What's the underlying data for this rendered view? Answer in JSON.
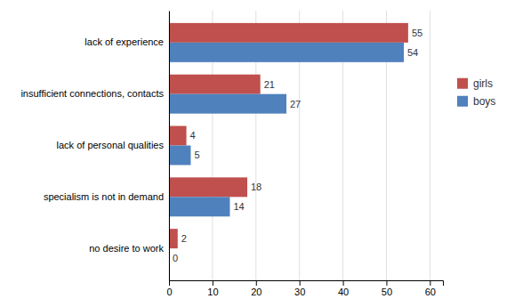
{
  "chart_data": {
    "type": "bar",
    "orientation": "horizontal",
    "categories": [
      "no desire to work",
      "specialism is not in demand",
      "lack of personal qualities",
      "insufficient connections, contacts",
      "lack of experience"
    ],
    "series": [
      {
        "name": "girls",
        "color": "#c0504d",
        "values": [
          2,
          18,
          4,
          21,
          55
        ]
      },
      {
        "name": "boys",
        "color": "#4f81bd",
        "values": [
          0,
          14,
          5,
          27,
          54
        ]
      }
    ],
    "xlim": [
      0,
      63
    ],
    "xticks": [
      0,
      10,
      20,
      30,
      40,
      50,
      60
    ],
    "grid": true,
    "data_labels": true,
    "legend": "right"
  }
}
